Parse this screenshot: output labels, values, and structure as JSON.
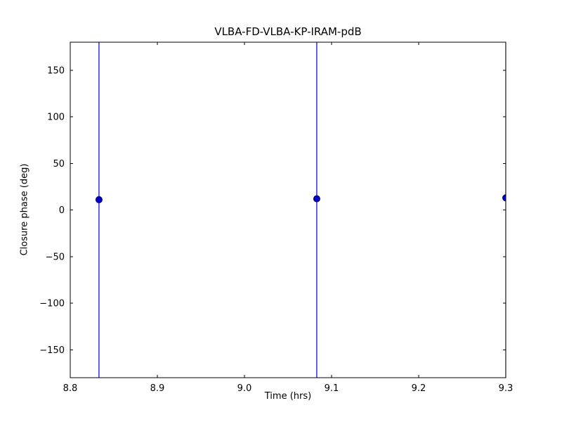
{
  "chart_data": {
    "type": "scatter",
    "title": "VLBA-FD-VLBA-KP-IRAM-pdB",
    "xlabel": "Time (hrs)",
    "ylabel": "Closure phase (deg)",
    "xlim": [
      8.8,
      9.3
    ],
    "ylim": [
      -180,
      180
    ],
    "xticks": [
      8.8,
      8.9,
      9.0,
      9.1,
      9.2,
      9.3
    ],
    "xtick_labels": [
      "8.8",
      "8.9",
      "9.0",
      "9.1",
      "9.2",
      "9.3"
    ],
    "yticks": [
      -150,
      -100,
      -50,
      0,
      50,
      100,
      150
    ],
    "ytick_labels": [
      "−150",
      "−100",
      "−50",
      "0",
      "50",
      "100",
      "150"
    ],
    "grid": false,
    "legend": "none",
    "axes_color": "#000000",
    "background": "#ffffff",
    "series": [
      {
        "name": "closure phase vs time",
        "marker": "circle",
        "marker_color": "#0000cc",
        "marker_edge_color": "#000066",
        "errorbar_color": "#0000cc",
        "yerr_full_height": true,
        "points": [
          {
            "x": 8.833,
            "y": 11
          },
          {
            "x": 9.083,
            "y": 12
          },
          {
            "x": 9.3,
            "y": 13
          }
        ]
      }
    ]
  }
}
